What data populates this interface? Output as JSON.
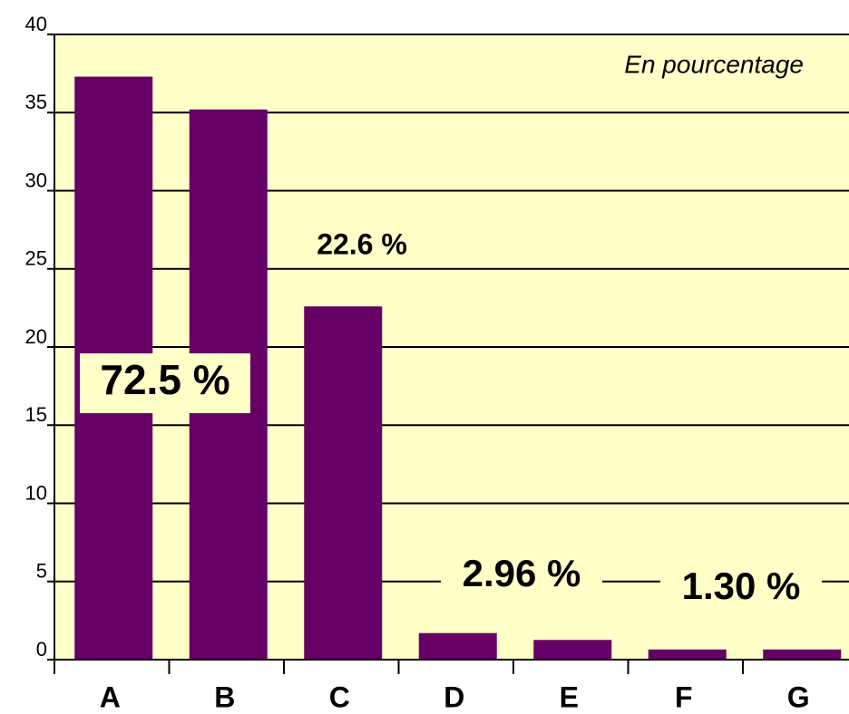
{
  "chart_data": {
    "type": "bar",
    "subtitle": "En pourcentage",
    "categories": [
      "A",
      "B",
      "C",
      "D",
      "E",
      "F",
      "G"
    ],
    "values": [
      37.3,
      35.2,
      22.6,
      1.7,
      1.26,
      0.65,
      0.65
    ],
    "color": "#660066",
    "ylim": [
      0,
      40
    ],
    "yticks": [
      0,
      5,
      10,
      15,
      20,
      25,
      30,
      35,
      40
    ],
    "grid": true,
    "annotations": [
      "72.5 %",
      "22.6 %",
      "2.96 %",
      "1.30 %"
    ]
  }
}
